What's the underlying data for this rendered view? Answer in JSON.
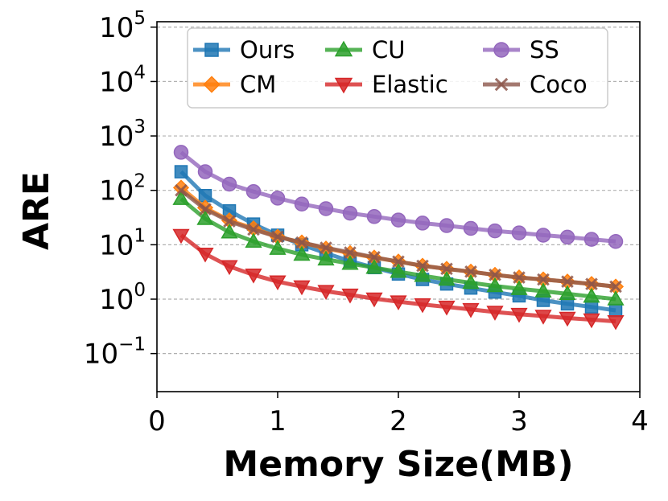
{
  "chart_data": {
    "type": "line",
    "title": "",
    "xlabel": "Memory Size(MB)",
    "ylabel": "ARE",
    "xlim": [
      0,
      4
    ],
    "ylim_log10": [
      -1.7,
      5.1
    ],
    "yscale": "log",
    "x_ticks": [
      0,
      1,
      2,
      3,
      4
    ],
    "y_ticks": [
      {
        "base": "10",
        "exp": "−1",
        "value": 0.1
      },
      {
        "base": "10",
        "exp": "0",
        "value": 1
      },
      {
        "base": "10",
        "exp": "1",
        "value": 10
      },
      {
        "base": "10",
        "exp": "2",
        "value": 100
      },
      {
        "base": "10",
        "exp": "3",
        "value": 1000
      },
      {
        "base": "10",
        "exp": "4",
        "value": 10000
      },
      {
        "base": "10",
        "exp": "5",
        "value": 100000
      }
    ],
    "grid": "horizontal-dashed",
    "legend_position": "top",
    "x": [
      0.2,
      0.4,
      0.6,
      0.8,
      1.0,
      1.2,
      1.4,
      1.6,
      1.8,
      2.0,
      2.2,
      2.4,
      2.6,
      2.8,
      3.0,
      3.2,
      3.4,
      3.6,
      3.8
    ],
    "series": [
      {
        "name": "Ours",
        "color": "#1f77b4",
        "marker": "square",
        "values": [
          220,
          80,
          42,
          24,
          15,
          10,
          7,
          5,
          3.8,
          2.9,
          2.3,
          1.9,
          1.6,
          1.35,
          1.15,
          0.95,
          0.82,
          0.72,
          0.62
        ]
      },
      {
        "name": "CM",
        "color": "#ff7f0e",
        "marker": "diamond",
        "values": [
          112,
          48,
          28,
          20,
          14,
          11,
          8.5,
          7,
          5.8,
          4.9,
          4.1,
          3.6,
          3.2,
          2.8,
          2.5,
          2.3,
          2.1,
          1.9,
          1.7
        ]
      },
      {
        "name": "CU",
        "color": "#2ca02c",
        "marker": "triangle-up",
        "values": [
          70,
          30,
          17,
          11.5,
          8.5,
          6.6,
          5.4,
          4.5,
          3.8,
          3.2,
          2.7,
          2.3,
          2.0,
          1.75,
          1.55,
          1.4,
          1.25,
          1.12,
          1.0
        ]
      },
      {
        "name": "Elastic",
        "color": "#d62728",
        "marker": "triangle-down",
        "values": [
          15,
          6.8,
          4.0,
          2.8,
          2.1,
          1.7,
          1.4,
          1.2,
          1.02,
          0.9,
          0.8,
          0.72,
          0.65,
          0.58,
          0.53,
          0.49,
          0.45,
          0.42,
          0.39
        ]
      },
      {
        "name": "SS",
        "color": "#9467bd",
        "marker": "circle",
        "values": [
          500,
          220,
          130,
          95,
          72,
          56,
          46,
          38,
          33,
          28.5,
          25,
          22.5,
          20,
          18,
          16.5,
          15,
          13.8,
          12.6,
          11.5
        ]
      },
      {
        "name": "Coco",
        "color": "#8c564b",
        "marker": "x",
        "values": [
          100,
          45,
          27,
          19,
          14,
          11,
          8.8,
          7.2,
          5.9,
          4.9,
          4.1,
          3.6,
          3.2,
          2.8,
          2.5,
          2.3,
          2.1,
          1.9,
          1.7
        ]
      }
    ]
  }
}
